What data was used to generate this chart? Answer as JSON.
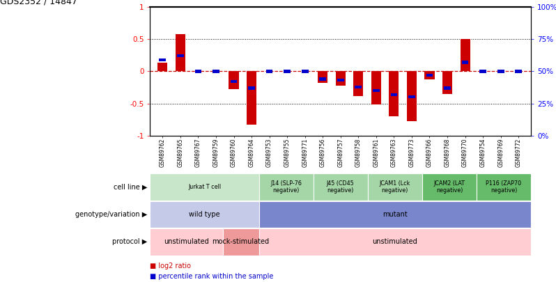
{
  "title": "GDS2352 / 14847",
  "samples": [
    "GSM89762",
    "GSM89765",
    "GSM89767",
    "GSM89759",
    "GSM89760",
    "GSM89764",
    "GSM89753",
    "GSM89755",
    "GSM89771",
    "GSM89756",
    "GSM89757",
    "GSM89758",
    "GSM89761",
    "GSM89763",
    "GSM89773",
    "GSM89766",
    "GSM89768",
    "GSM89770",
    "GSM89754",
    "GSM89769",
    "GSM89772"
  ],
  "log2_ratio": [
    0.14,
    0.58,
    0.0,
    0.0,
    -0.28,
    -0.83,
    0.0,
    0.0,
    0.0,
    -0.18,
    -0.22,
    -0.38,
    -0.51,
    -0.7,
    -0.78,
    -0.13,
    -0.35,
    0.5,
    0.0,
    0.0,
    0.0
  ],
  "percentile_raw": [
    0.59,
    0.62,
    0.5,
    0.5,
    0.42,
    0.37,
    0.5,
    0.5,
    0.5,
    0.44,
    0.43,
    0.38,
    0.35,
    0.32,
    0.3,
    0.47,
    0.37,
    0.57,
    0.5,
    0.5,
    0.5
  ],
  "cell_lines": [
    {
      "label": "Jurkat T cell",
      "start": 0,
      "end": 5,
      "color": "#c8e6c9"
    },
    {
      "label": "J14 (SLP-76\nnegative)",
      "start": 6,
      "end": 8,
      "color": "#a5d6a7"
    },
    {
      "label": "J45 (CD45\nnegative)",
      "start": 9,
      "end": 11,
      "color": "#a5d6a7"
    },
    {
      "label": "JCAM1 (Lck\nnegative)",
      "start": 12,
      "end": 14,
      "color": "#a5d6a7"
    },
    {
      "label": "JCAM2 (LAT\nnegative)",
      "start": 15,
      "end": 17,
      "color": "#66bb6a"
    },
    {
      "label": "P116 (ZAP70\nnegative)",
      "start": 18,
      "end": 20,
      "color": "#66bb6a"
    }
  ],
  "genotype_rows": [
    {
      "label": "wild type",
      "start": 0,
      "end": 5,
      "color": "#c5cae9"
    },
    {
      "label": "mutant",
      "start": 6,
      "end": 20,
      "color": "#7986cb"
    }
  ],
  "protocol_rows": [
    {
      "label": "unstimulated",
      "start": 0,
      "end": 3,
      "color": "#ffcdd2"
    },
    {
      "label": "mock-stimulated",
      "start": 4,
      "end": 5,
      "color": "#ef9a9a"
    },
    {
      "label": "unstimulated",
      "start": 6,
      "end": 20,
      "color": "#ffcdd2"
    }
  ],
  "bar_color": "#cc0000",
  "dot_color": "#0000cc",
  "zero_line_color": "#cc0000",
  "yticks": [
    -1,
    -0.5,
    0,
    0.5,
    1
  ],
  "y2ticks": [
    0,
    25,
    50,
    75,
    100
  ],
  "row_labels": [
    "cell line",
    "genotype/variation",
    "protocol"
  ],
  "legend": [
    {
      "color": "#cc0000",
      "text": "log2 ratio"
    },
    {
      "color": "#0000cc",
      "text": "percentile rank within the sample"
    }
  ]
}
